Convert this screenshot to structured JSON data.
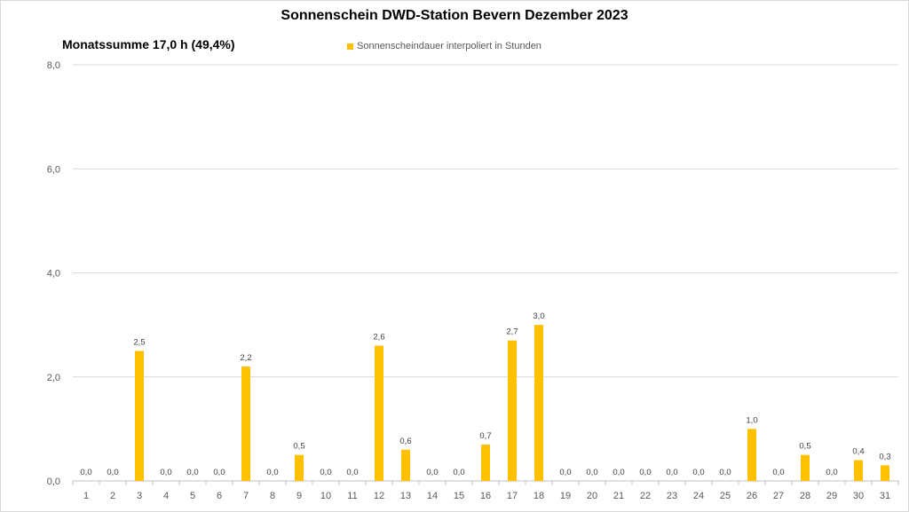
{
  "chart_data": {
    "type": "bar",
    "title": "Sonnenschein  DWD-Station  Bevern Dezember 2023",
    "subtitle": "Monatssumme 17,0 h (49,4%)",
    "xlabel": "",
    "ylabel": "",
    "ylim": [
      0,
      8
    ],
    "yticks": [
      "0,0",
      "2,0",
      "4,0",
      "6,0",
      "8,0"
    ],
    "grid": true,
    "legend_position": "top",
    "categories": [
      "1",
      "2",
      "3",
      "4",
      "5",
      "6",
      "7",
      "8",
      "9",
      "10",
      "11",
      "12",
      "13",
      "14",
      "15",
      "16",
      "17",
      "18",
      "19",
      "20",
      "21",
      "22",
      "23",
      "24",
      "25",
      "26",
      "27",
      "28",
      "29",
      "30",
      "31"
    ],
    "series": [
      {
        "name": "Sonnenscheindauer interpoliert in Stunden",
        "color": "#ffc000",
        "values": [
          0.0,
          0.0,
          2.5,
          0.0,
          0.0,
          0.0,
          2.2,
          0.0,
          0.5,
          0.0,
          0.0,
          2.6,
          0.6,
          0.0,
          0.0,
          0.7,
          2.7,
          3.0,
          0.0,
          0.0,
          0.0,
          0.0,
          0.0,
          0.0,
          0.0,
          1.0,
          0.0,
          0.5,
          0.0,
          0.4,
          0.3
        ],
        "labels": [
          "0,0",
          "0,0",
          "2,5",
          "0,0",
          "0,0",
          "0,0",
          "2,2",
          "0,0",
          "0,5",
          "0,0",
          "0,0",
          "2,6",
          "0,6",
          "0,0",
          "0,0",
          "0,7",
          "2,7",
          "3,0",
          "0,0",
          "0,0",
          "0,0",
          "0,0",
          "0,0",
          "0,0",
          "0,0",
          "1,0",
          "0,0",
          "0,5",
          "0,0",
          "0,4",
          "0,3"
        ]
      }
    ]
  }
}
